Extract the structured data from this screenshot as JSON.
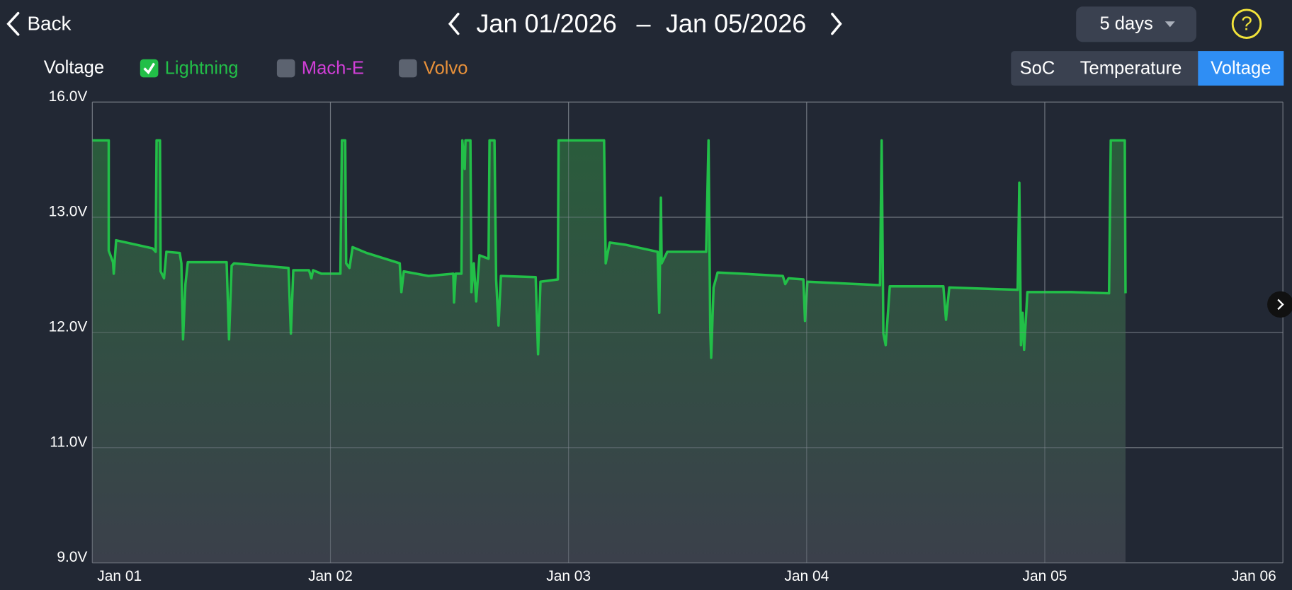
{
  "header": {
    "back": "Back",
    "start_date": "Jan 01/2026",
    "separator": "–",
    "end_date": "Jan 05/2026",
    "range": "5 days",
    "help": "?"
  },
  "tabs": {
    "items": [
      "SoC",
      "Temperature",
      "Voltage"
    ],
    "active": 2
  },
  "chart_data": {
    "type": "line",
    "title": "Voltage",
    "x": [
      0,
      0.069,
      0.069,
      0.087,
      0.09,
      0.1,
      0.166,
      0.253,
      0.266,
      0.27,
      0.284,
      0.287,
      0.301,
      0.311,
      0.367,
      0.374,
      0.381,
      0.391,
      0.401,
      0.564,
      0.574,
      0.585,
      0.595,
      0.824,
      0.834,
      0.844,
      0.91,
      0.92,
      0.927,
      0.962,
      1.042,
      1.048,
      1.062,
      1.066,
      1.08,
      1.093,
      1.152,
      1.291,
      1.298,
      1.308,
      1.412,
      1.516,
      1.519,
      1.526,
      1.55,
      1.554,
      1.564,
      1.567,
      1.588,
      1.592,
      1.602,
      1.612,
      1.626,
      1.664,
      1.668,
      1.689,
      1.696,
      1.706,
      1.716,
      1.862,
      1.872,
      1.882,
      1.955,
      1.958,
      2.149,
      2.156,
      2.173,
      2.242,
      2.374,
      2.381,
      2.388,
      2.391,
      2.415,
      2.578,
      2.588,
      2.595,
      2.599,
      2.609,
      2.626,
      2.727,
      2.9,
      2.91,
      2.924,
      2.986,
      2.993,
      3.003,
      3.308,
      3.315,
      3.322,
      3.332,
      3.349,
      3.574,
      3.585,
      3.599,
      3.886,
      3.893,
      3.9,
      3.907,
      3.913,
      3.927,
      4.111,
      4.27,
      4.277,
      4.336,
      4.339
    ],
    "series": [
      {
        "name": "Lightning",
        "color": "#22bf48",
        "checked": true,
        "values": [
          15.0,
          15.0,
          12.71,
          12.61,
          12.51,
          12.8,
          12.77,
          12.73,
          12.7,
          15.0,
          15.0,
          12.53,
          12.47,
          12.7,
          12.69,
          12.6,
          11.94,
          12.42,
          12.61,
          12.61,
          11.94,
          12.58,
          12.6,
          12.56,
          11.99,
          12.54,
          12.54,
          12.47,
          12.54,
          12.51,
          12.51,
          15.0,
          15.0,
          12.6,
          12.56,
          12.74,
          12.69,
          12.6,
          12.35,
          12.53,
          12.49,
          12.51,
          12.26,
          12.51,
          12.51,
          15.0,
          14.26,
          15.0,
          15.0,
          12.35,
          12.6,
          12.27,
          12.67,
          12.64,
          15.0,
          15.0,
          12.46,
          12.06,
          12.49,
          12.48,
          11.81,
          12.44,
          12.46,
          15.0,
          15.0,
          12.6,
          12.78,
          12.76,
          12.7,
          12.17,
          13.51,
          12.6,
          12.7,
          12.7,
          15.0,
          12.03,
          11.78,
          12.39,
          12.52,
          12.51,
          12.49,
          12.42,
          12.47,
          12.46,
          12.1,
          12.44,
          12.41,
          15.0,
          11.99,
          11.89,
          12.4,
          12.4,
          12.11,
          12.39,
          12.37,
          13.9,
          11.89,
          12.17,
          11.85,
          12.35,
          12.35,
          12.34,
          15.0,
          15.0,
          12.34
        ]
      }
    ],
    "hidden_series": [
      {
        "name": "Mach-E",
        "color": "#d23fd8"
      },
      {
        "name": "Volvo",
        "color": "#e8913a"
      }
    ],
    "xlim": [
      0,
      5
    ],
    "xticks": [
      {
        "value": 0,
        "label": "Jan 01"
      },
      {
        "value": 1,
        "label": "Jan 02"
      },
      {
        "value": 2,
        "label": "Jan 03"
      },
      {
        "value": 3,
        "label": "Jan 04"
      },
      {
        "value": 4,
        "label": "Jan 05"
      },
      {
        "value": 5,
        "label": "Jan 06"
      }
    ],
    "ylim": [
      9,
      16
    ],
    "yticks": [
      {
        "value": 9,
        "label": "9.0V"
      },
      {
        "value": 11,
        "label": "11.0V"
      },
      {
        "value": 12,
        "label": "12.0V"
      },
      {
        "value": 13,
        "label": "13.0V"
      },
      {
        "value": 16,
        "label": "16.0V"
      }
    ],
    "grid": true
  }
}
